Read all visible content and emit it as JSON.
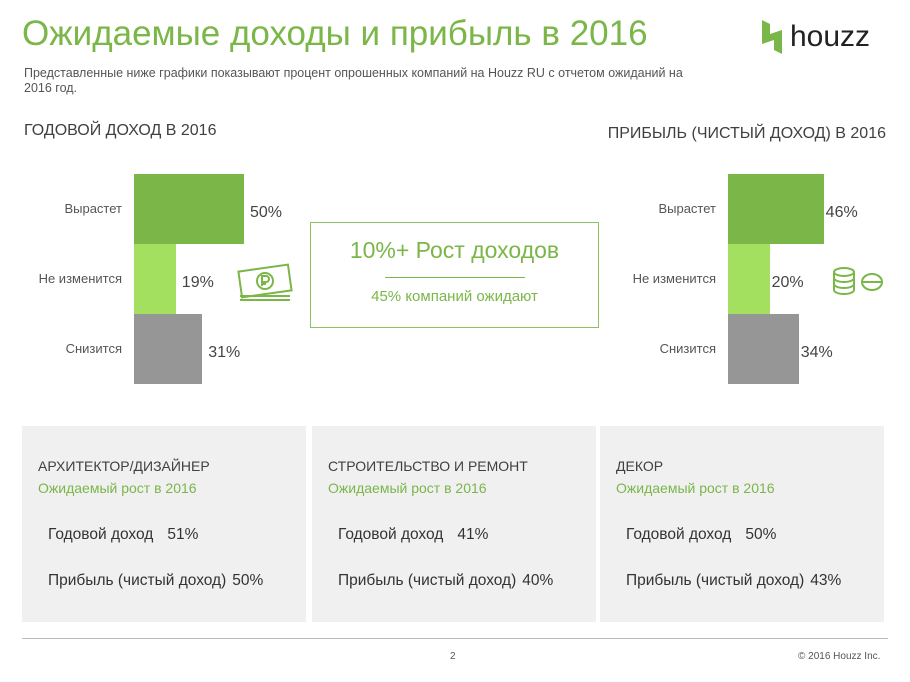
{
  "header": {
    "title": "Ожидаемые доходы и прибыль в 2016",
    "subtitle": "Представленные ниже графики показывают процент опрошенных компаний на Houzz RU с отчетом ожиданий на 2016 год.",
    "logo": "houzz"
  },
  "chart_data": [
    {
      "type": "bar",
      "orientation": "horizontal",
      "title": "ГОДОВОЙ ДОХОД В 2016",
      "categories": [
        "Вырастет",
        "Не изменится",
        "Снизится"
      ],
      "values": [
        50,
        19,
        31
      ],
      "labels": [
        "50%",
        "19%",
        "31%"
      ],
      "colors": [
        "#7ab648",
        "#a3e060",
        "#969696"
      ]
    },
    {
      "type": "bar",
      "orientation": "horizontal",
      "title": "ПРИБЫЛЬ (ЧИСТЫЙ ДОХОД) В 2016",
      "categories": [
        "Вырастет",
        "Не изменится",
        "Снизится"
      ],
      "values": [
        46,
        20,
        34
      ],
      "labels": [
        "46%",
        "20%",
        "34%"
      ],
      "colors": [
        "#7ab648",
        "#a3e060",
        "#969696"
      ]
    }
  ],
  "callout": {
    "headline": "10%+ Рост доходов",
    "sub": "45% компаний ожидают"
  },
  "icons": {
    "left": "ruble-banknote-icon",
    "right": "coins-icon"
  },
  "panels": [
    {
      "title": "АРХИТЕКТОР/ДИЗАЙНЕР",
      "growth": "Ожидаемый рост в 2016",
      "rows": [
        {
          "label": "Годовой доход",
          "value": "51%"
        },
        {
          "label": "Прибыль (чистый доход)",
          "value": "50%"
        }
      ]
    },
    {
      "title": "СТРОИТЕЛЬСТВО И РЕМОНТ",
      "growth": "Ожидаемый рост в 2016",
      "rows": [
        {
          "label": "Годовой доход",
          "value": "41%"
        },
        {
          "label": "Прибыль (чистый доход)",
          "value": "40%"
        }
      ]
    },
    {
      "title": "ДЕКОР",
      "growth": "Ожидаемый рост в 2016",
      "rows": [
        {
          "label": "Годовой доход",
          "value": "50%"
        },
        {
          "label": "Прибыль (чистый доход)",
          "value": "43%"
        }
      ]
    }
  ],
  "footer": {
    "page": "2",
    "copyright": "© 2016 Houzz Inc."
  },
  "colors": {
    "accent": "#7ab648",
    "light_green": "#a3e060",
    "gray": "#969696"
  }
}
